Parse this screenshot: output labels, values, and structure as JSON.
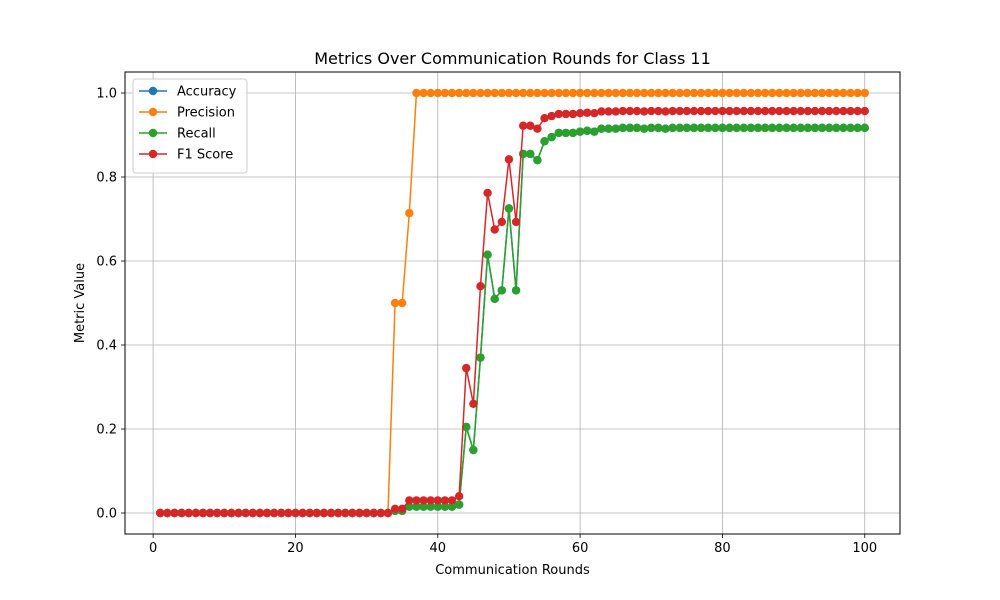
{
  "chart_data": {
    "type": "line",
    "title": "Metrics Over Communication Rounds for Class 11",
    "xlabel": "Communication Rounds",
    "ylabel": "Metric Value",
    "xlim": [
      -3.95,
      104.95
    ],
    "ylim": [
      -0.05,
      1.05
    ],
    "xticks": [
      0,
      20,
      40,
      60,
      80,
      100
    ],
    "yticks": [
      0.0,
      0.2,
      0.4,
      0.6,
      0.8,
      1.0
    ],
    "xtick_labels": [
      "0",
      "20",
      "40",
      "60",
      "80",
      "100"
    ],
    "ytick_labels": [
      "0.0",
      "0.2",
      "0.4",
      "0.6",
      "0.8",
      "1.0"
    ],
    "grid": true,
    "legend_position": "top-left",
    "x": [
      1,
      2,
      3,
      4,
      5,
      6,
      7,
      8,
      9,
      10,
      11,
      12,
      13,
      14,
      15,
      16,
      17,
      18,
      19,
      20,
      21,
      22,
      23,
      24,
      25,
      26,
      27,
      28,
      29,
      30,
      31,
      32,
      33,
      34,
      35,
      36,
      37,
      38,
      39,
      40,
      41,
      42,
      43,
      44,
      45,
      46,
      47,
      48,
      49,
      50,
      51,
      52,
      53,
      54,
      55,
      56,
      57,
      58,
      59,
      60,
      61,
      62,
      63,
      64,
      65,
      66,
      67,
      68,
      69,
      70,
      71,
      72,
      73,
      74,
      75,
      76,
      77,
      78,
      79,
      80,
      81,
      82,
      83,
      84,
      85,
      86,
      87,
      88,
      89,
      90,
      91,
      92,
      93,
      94,
      95,
      96,
      97,
      98,
      99,
      100
    ],
    "series": [
      {
        "name": "Accuracy",
        "color": "#1f77b4",
        "values": [
          0,
          0,
          0,
          0,
          0,
          0,
          0,
          0,
          0,
          0,
          0,
          0,
          0,
          0,
          0,
          0,
          0,
          0,
          0,
          0,
          0,
          0,
          0,
          0,
          0,
          0,
          0,
          0,
          0,
          0,
          0,
          0,
          0,
          0.005,
          0.005,
          0.015,
          0.015,
          0.015,
          0.015,
          0.015,
          0.015,
          0.015,
          0.02,
          0.205,
          0.15,
          0.37,
          0.615,
          0.51,
          0.53,
          0.725,
          0.53,
          0.855,
          0.855,
          0.84,
          0.885,
          0.895,
          0.905,
          0.905,
          0.905,
          0.908,
          0.91,
          0.908,
          0.915,
          0.915,
          0.915,
          0.917,
          0.917,
          0.917,
          0.915,
          0.917,
          0.917,
          0.915,
          0.917,
          0.917,
          0.917,
          0.917,
          0.917,
          0.917,
          0.917,
          0.917,
          0.917,
          0.917,
          0.917,
          0.917,
          0.917,
          0.917,
          0.917,
          0.917,
          0.917,
          0.917,
          0.917,
          0.917,
          0.917,
          0.917,
          0.917,
          0.917,
          0.917,
          0.917,
          0.917,
          0.917
        ]
      },
      {
        "name": "Precision",
        "color": "#ff7f0e",
        "values": [
          0,
          0,
          0,
          0,
          0,
          0,
          0,
          0,
          0,
          0,
          0,
          0,
          0,
          0,
          0,
          0,
          0,
          0,
          0,
          0,
          0,
          0,
          0,
          0,
          0,
          0,
          0,
          0,
          0,
          0,
          0,
          0,
          0,
          0.5,
          0.5,
          0.714,
          1,
          1,
          1,
          1,
          1,
          1,
          1,
          1,
          1,
          1,
          1,
          1,
          1,
          1,
          1,
          1,
          1,
          1,
          1,
          1,
          1,
          1,
          1,
          1,
          1,
          1,
          1,
          1,
          1,
          1,
          1,
          1,
          1,
          1,
          1,
          1,
          1,
          1,
          1,
          1,
          1,
          1,
          1,
          1,
          1,
          1,
          1,
          1,
          1,
          1,
          1,
          1,
          1,
          1,
          1,
          1,
          1,
          1,
          1,
          1,
          1,
          1,
          1,
          1
        ]
      },
      {
        "name": "Recall",
        "color": "#2ca02c",
        "values": [
          0,
          0,
          0,
          0,
          0,
          0,
          0,
          0,
          0,
          0,
          0,
          0,
          0,
          0,
          0,
          0,
          0,
          0,
          0,
          0,
          0,
          0,
          0,
          0,
          0,
          0,
          0,
          0,
          0,
          0,
          0,
          0,
          0,
          0.005,
          0.005,
          0.015,
          0.015,
          0.015,
          0.015,
          0.015,
          0.015,
          0.015,
          0.02,
          0.205,
          0.15,
          0.37,
          0.615,
          0.51,
          0.53,
          0.725,
          0.53,
          0.855,
          0.855,
          0.84,
          0.885,
          0.895,
          0.905,
          0.905,
          0.905,
          0.908,
          0.91,
          0.908,
          0.915,
          0.915,
          0.915,
          0.917,
          0.917,
          0.917,
          0.915,
          0.917,
          0.917,
          0.915,
          0.917,
          0.917,
          0.917,
          0.917,
          0.917,
          0.917,
          0.917,
          0.917,
          0.917,
          0.917,
          0.917,
          0.917,
          0.917,
          0.917,
          0.917,
          0.917,
          0.917,
          0.917,
          0.917,
          0.917,
          0.917,
          0.917,
          0.917,
          0.917,
          0.917,
          0.917,
          0.917,
          0.917
        ]
      },
      {
        "name": "F1 Score",
        "color": "#d62728",
        "values": [
          0,
          0,
          0,
          0,
          0,
          0,
          0,
          0,
          0,
          0,
          0,
          0,
          0,
          0,
          0,
          0,
          0,
          0,
          0,
          0,
          0,
          0,
          0,
          0,
          0,
          0,
          0,
          0,
          0,
          0,
          0,
          0,
          0,
          0.01,
          0.01,
          0.03,
          0.03,
          0.03,
          0.03,
          0.03,
          0.03,
          0.03,
          0.04,
          0.345,
          0.26,
          0.54,
          0.762,
          0.675,
          0.693,
          0.842,
          0.693,
          0.922,
          0.922,
          0.915,
          0.94,
          0.945,
          0.95,
          0.95,
          0.95,
          0.952,
          0.953,
          0.952,
          0.956,
          0.956,
          0.956,
          0.957,
          0.957,
          0.957,
          0.956,
          0.957,
          0.957,
          0.956,
          0.957,
          0.957,
          0.957,
          0.957,
          0.957,
          0.957,
          0.957,
          0.957,
          0.957,
          0.957,
          0.957,
          0.957,
          0.957,
          0.957,
          0.957,
          0.957,
          0.957,
          0.957,
          0.957,
          0.957,
          0.957,
          0.957,
          0.957,
          0.957,
          0.957,
          0.957,
          0.957,
          0.957
        ]
      }
    ]
  }
}
